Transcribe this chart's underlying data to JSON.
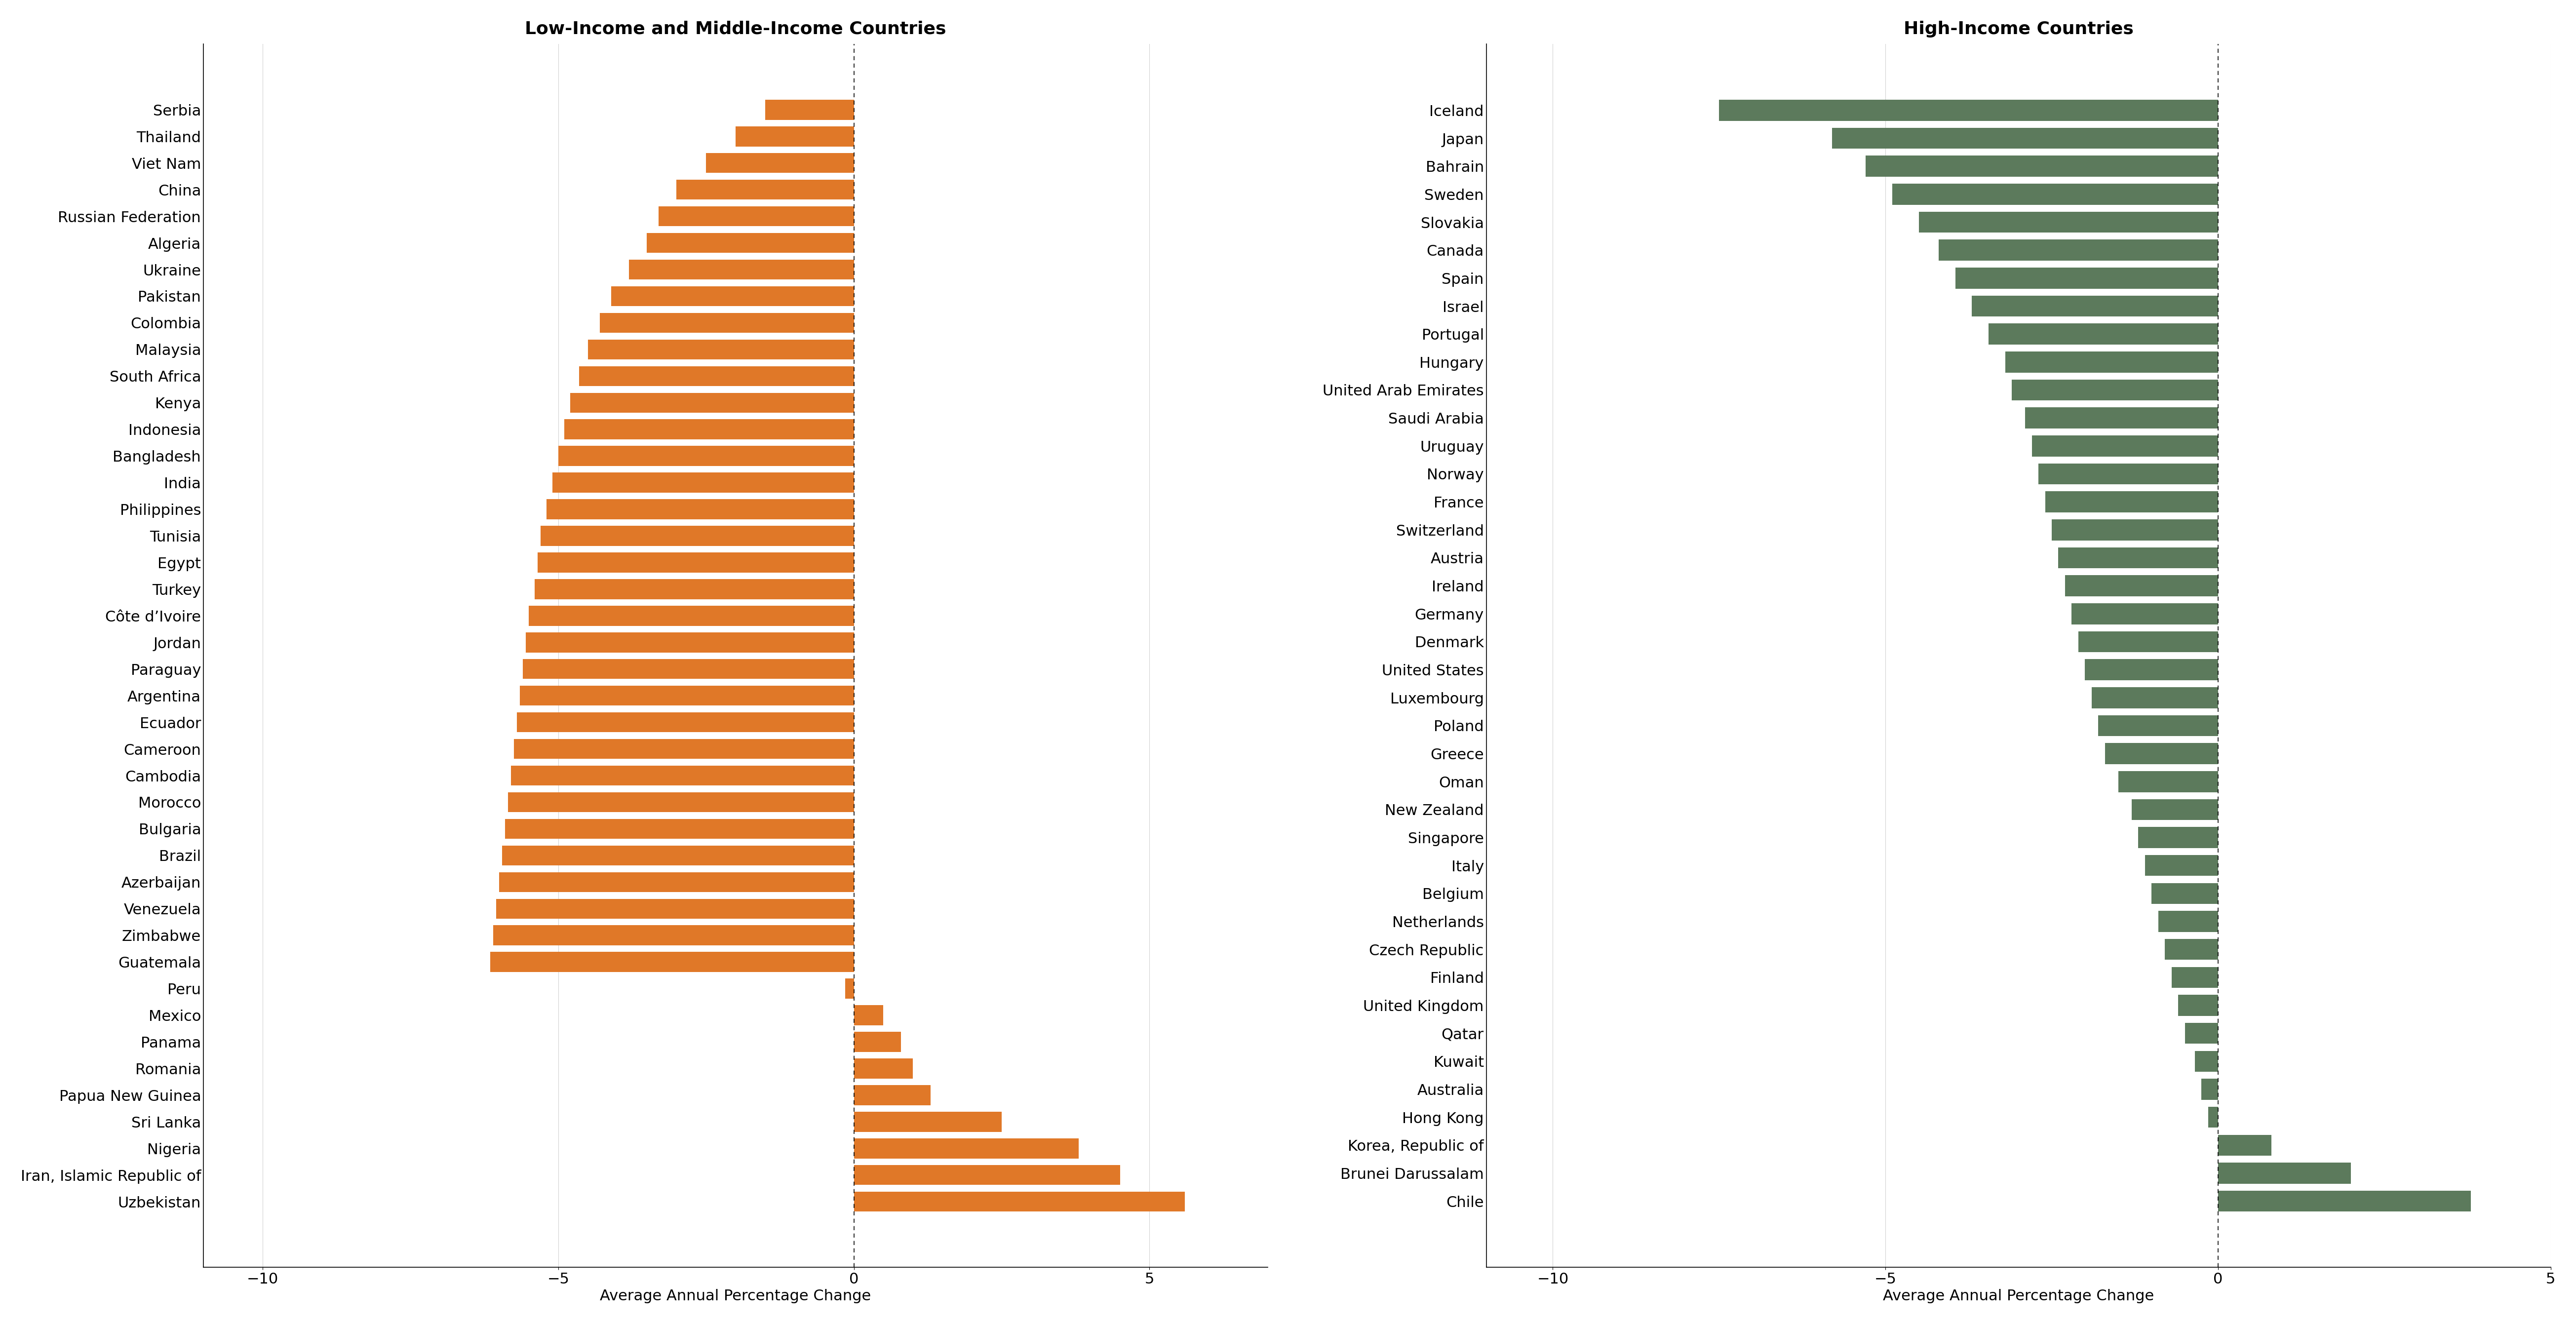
{
  "lmic_countries": [
    "Serbia",
    "Thailand",
    "Viet Nam",
    "China",
    "Russian Federation",
    "Algeria",
    "Ukraine",
    "Pakistan",
    "Colombia",
    "Malaysia",
    "South Africa",
    "Kenya",
    "Indonesia",
    "Bangladesh",
    "India",
    "Philippines",
    "Tunisia",
    "Egypt",
    "Turkey",
    "Côte d’Ivoire",
    "Jordan",
    "Paraguay",
    "Argentina",
    "Ecuador",
    "Cameroon",
    "Cambodia",
    "Morocco",
    "Bulgaria",
    "Brazil",
    "Azerbaijan",
    "Venezuela",
    "Zimbabwe",
    "Guatemala",
    "Peru",
    "Mexico",
    "Panama",
    "Romania",
    "Papua New Guinea",
    "Sri Lanka",
    "Nigeria",
    "Iran, Islamic Republic of",
    "Uzbekistan"
  ],
  "lmic_values": [
    -1.5,
    -2.0,
    -2.5,
    -3.0,
    -3.3,
    -3.5,
    -3.8,
    -4.1,
    -4.3,
    -4.5,
    -4.65,
    -4.8,
    -4.9,
    -5.0,
    -5.1,
    -5.2,
    -5.3,
    -5.35,
    -5.4,
    -5.5,
    -5.55,
    -5.6,
    -5.65,
    -5.7,
    -5.75,
    -5.8,
    -5.85,
    -5.9,
    -5.95,
    -6.0,
    -6.05,
    -6.1,
    -6.15,
    -0.15,
    0.5,
    0.8,
    1.0,
    1.3,
    2.5,
    3.8,
    4.5,
    5.6
  ],
  "hic_countries": [
    "Iceland",
    "Japan",
    "Bahrain",
    "Sweden",
    "Slovakia",
    "Canada",
    "Spain",
    "Israel",
    "Portugal",
    "Hungary",
    "United Arab Emirates",
    "Saudi Arabia",
    "Uruguay",
    "Norway",
    "France",
    "Switzerland",
    "Austria",
    "Ireland",
    "Germany",
    "Denmark",
    "United States",
    "Luxembourg",
    "Poland",
    "Greece",
    "Oman",
    "New Zealand",
    "Singapore",
    "Italy",
    "Belgium",
    "Netherlands",
    "Czech Republic",
    "Finland",
    "United Kingdom",
    "Qatar",
    "Kuwait",
    "Australia",
    "Hong Kong",
    "Korea, Republic of",
    "Brunei Darussalam",
    "Chile"
  ],
  "hic_values": [
    -7.5,
    -5.8,
    -5.3,
    -4.9,
    -4.5,
    -4.2,
    -3.95,
    -3.7,
    -3.45,
    -3.2,
    -3.1,
    -2.9,
    -2.8,
    -2.7,
    -2.6,
    -2.5,
    -2.4,
    -2.3,
    -2.2,
    -2.1,
    -2.0,
    -1.9,
    -1.8,
    -1.7,
    -1.5,
    -1.3,
    -1.2,
    -1.1,
    -1.0,
    -0.9,
    -0.8,
    -0.7,
    -0.6,
    -0.5,
    -0.35,
    -0.25,
    -0.15,
    0.8,
    2.0,
    3.8
  ],
  "lmic_color": "#E07828",
  "hic_color": "#5C7A5C",
  "lmic_title": "Low-Income and Middle-Income Countries",
  "hic_title": "High-Income Countries",
  "xlabel": "Average Annual Percentage Change",
  "lmic_xlim": [
    -11,
    7
  ],
  "hic_xlim": [
    -11,
    5
  ],
  "lmic_xticks": [
    -10,
    -5,
    0,
    5
  ],
  "hic_xticks": [
    -10,
    -5,
    0,
    5
  ],
  "background_color": "#ffffff",
  "title_fontsize": 26,
  "label_fontsize": 22,
  "tick_fontsize": 22,
  "bar_height": 0.75
}
